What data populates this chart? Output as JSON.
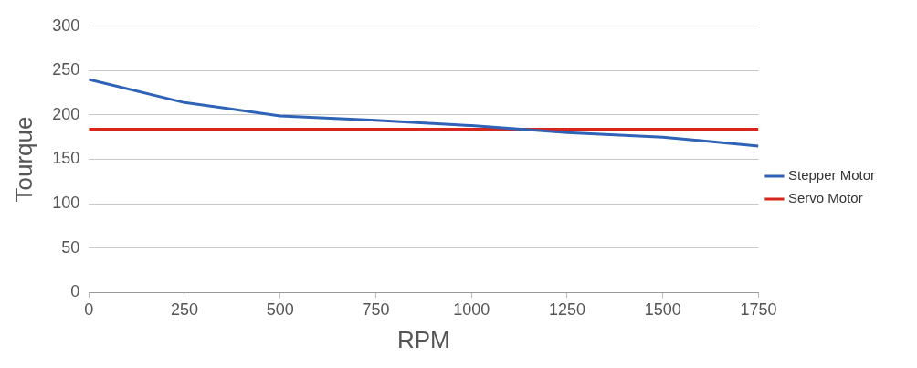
{
  "chart_data": {
    "type": "line",
    "xlabel": "RPM",
    "ylabel": "Tourque",
    "series": [
      {
        "name": "Stepper Motor",
        "color": "#2e63b8",
        "x": [
          0,
          250,
          500,
          750,
          1000,
          1250,
          1500,
          1750
        ],
        "values": [
          240,
          214,
          199,
          194,
          188,
          180,
          175,
          165
        ]
      },
      {
        "name": "Servo Motor",
        "color": "#d9261c",
        "x": [
          0,
          1750
        ],
        "values": [
          184,
          184
        ]
      }
    ],
    "xlim": [
      0,
      1750
    ],
    "xticks": [
      0,
      250,
      500,
      750,
      1000,
      1250,
      1500,
      1750
    ],
    "ylim": [
      0,
      300
    ],
    "yticks": [
      0,
      50,
      100,
      150,
      200,
      250,
      300
    ],
    "grid": "y",
    "legend": "right",
    "marker": "none",
    "line_style": "solid"
  }
}
